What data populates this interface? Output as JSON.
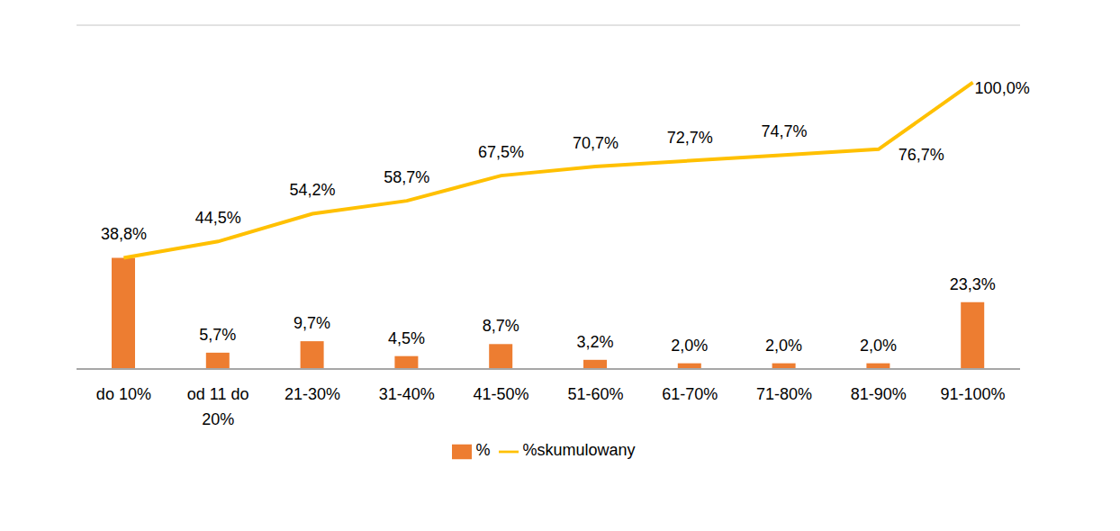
{
  "chart_data": {
    "type": "bar",
    "categories": [
      "do 10%",
      "od 11 do 20%",
      "21-30%",
      "31-40%",
      "41-50%",
      "51-60%",
      "61-70%",
      "71-80%",
      "81-90%",
      "91-100%"
    ],
    "series": [
      {
        "name": "%",
        "type": "bar",
        "color": "#ED7D31",
        "values": [
          38.8,
          5.7,
          9.7,
          4.5,
          8.7,
          3.2,
          2.0,
          2.0,
          2.0,
          23.3
        ],
        "value_labels": [
          "38,8%",
          "5,7%",
          "9,7%",
          "4,5%",
          "8,7%",
          "3,2%",
          "2,0%",
          "2,0%",
          "2,0%",
          "23,3%"
        ]
      },
      {
        "name": "%skumulowany",
        "type": "line",
        "color": "#FFC000",
        "values": [
          38.8,
          44.5,
          54.2,
          58.7,
          67.5,
          70.7,
          72.7,
          74.7,
          76.7,
          100.0
        ],
        "value_labels": [
          "38,8%",
          "44,5%",
          "54,2%",
          "58,7%",
          "67,5%",
          "70,7%",
          "72,7%",
          "74,7%",
          "76,7%",
          "100,0%"
        ]
      }
    ],
    "ylim": [
      0,
      120
    ],
    "yticks": [
      0,
      20,
      40,
      60,
      80,
      100,
      120
    ],
    "grid": true,
    "tick_labels": "x",
    "data_labels": true,
    "legend": "bottom"
  }
}
